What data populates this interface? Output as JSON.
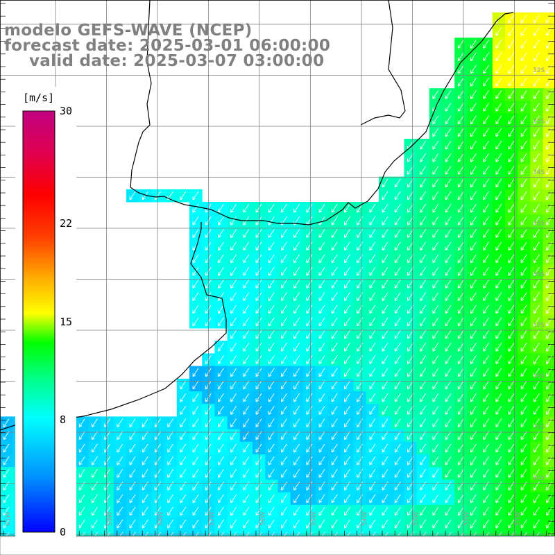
{
  "title": {
    "line1": "modelo GEFS-WAVE (NCEP)",
    "line2": "forecast date: 2025-03-01 06:00:00",
    "line3": "valid date: 2025-03-07 03:00:00"
  },
  "colorbar": {
    "unit": "[m/s]",
    "min": 0,
    "max": 30,
    "ticks": [
      "30",
      "22",
      "15",
      "8",
      "0"
    ],
    "tick_values": [
      30,
      22,
      15,
      8,
      0
    ],
    "colors": [
      "#0000ff",
      "#0090ff",
      "#00ffff",
      "#00ff80",
      "#00ff00",
      "#b0ff00",
      "#ffff00",
      "#ff9000",
      "#ff0000",
      "#ff0060",
      "#c00080"
    ]
  },
  "map": {
    "variable": "wind speed",
    "units": "m/s",
    "wind_direction": "from the north-east",
    "lat_labels": [
      "32S",
      "33S",
      "34S",
      "35S",
      "36S",
      "37S",
      "38S",
      "39S",
      "40S"
    ],
    "lon_labels": [
      "61W",
      "60W",
      "59W",
      "58W",
      "57W",
      "56W",
      "55W",
      "54W",
      "53W",
      "52W",
      "51W"
    ]
  }
}
